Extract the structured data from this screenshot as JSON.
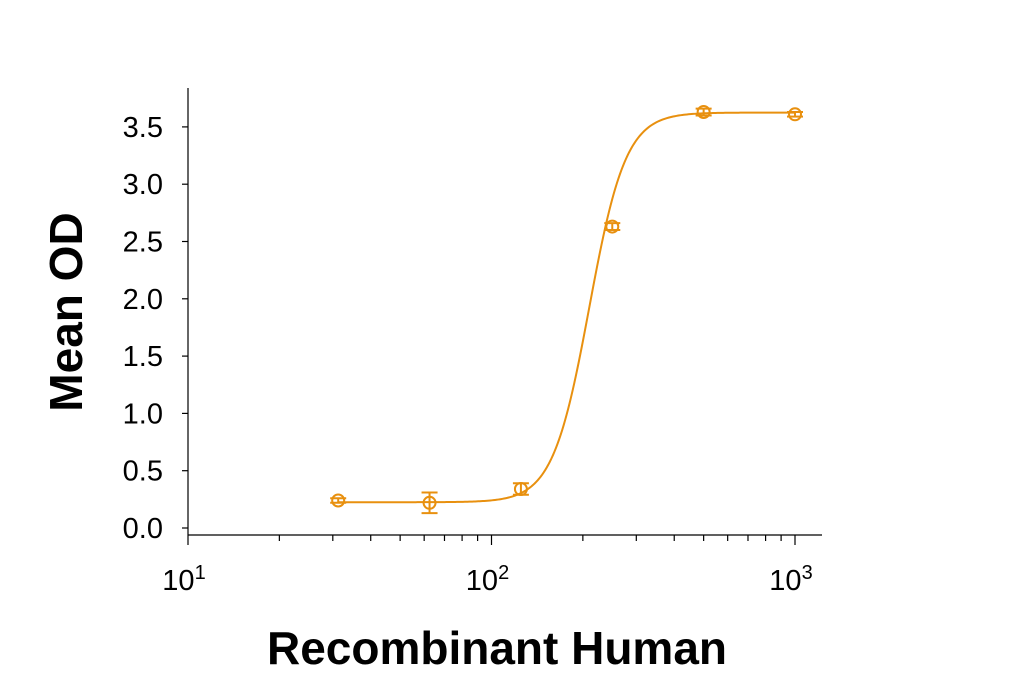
{
  "chart_data": {
    "type": "scatter",
    "title": "",
    "xlabel": "Recombinant Human",
    "ylabel": "Mean OD",
    "xscale": "log",
    "xlim": [
      10,
      1200
    ],
    "ylim": [
      0,
      3.8
    ],
    "x_ticks": [
      {
        "value": 10,
        "base": "10",
        "exp": "1"
      },
      {
        "value": 100,
        "base": "10",
        "exp": "2"
      },
      {
        "value": 1000,
        "base": "10",
        "exp": "3"
      }
    ],
    "y_ticks": [
      "0.0",
      "0.5",
      "1.0",
      "1.5",
      "2.0",
      "2.5",
      "3.0",
      "3.5"
    ],
    "grid": false,
    "legend": null,
    "series": [
      {
        "name": "Recombinant Human",
        "color": "#E8900F",
        "marker": "circle-open",
        "fit": "4PL sigmoid",
        "x": [
          31.25,
          62.5,
          125,
          250,
          500,
          1000
        ],
        "y": [
          0.24,
          0.22,
          0.34,
          2.63,
          3.63,
          3.61
        ],
        "error": [
          0.02,
          0.09,
          0.05,
          0.03,
          0.03,
          0.02
        ]
      }
    ],
    "fit_params": {
      "bottom": 0.225,
      "top": 3.625,
      "ec50": 210,
      "hill": 7.2
    }
  }
}
